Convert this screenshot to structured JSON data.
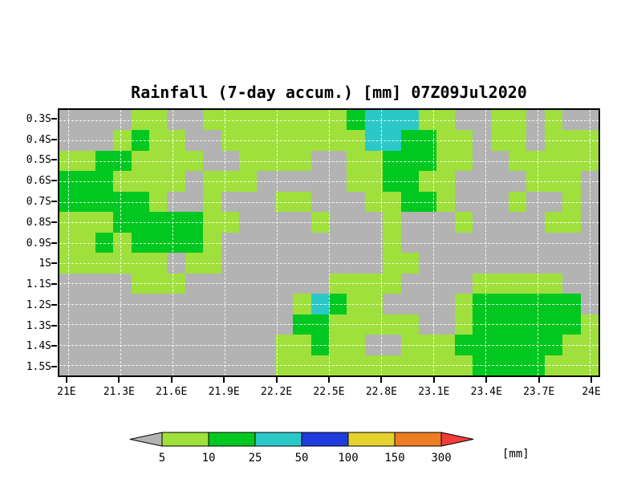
{
  "title": "Rainfall (7-day accum.) [mm] 07Z09Jul2020",
  "chart_data": {
    "type": "heatmap",
    "title": "Rainfall (7-day accum.) [mm] 07Z09Jul2020",
    "xlabel": "",
    "ylabel": "",
    "lon_range": [
      20.95,
      24.05
    ],
    "lat_range": [
      0.25,
      1.55
    ],
    "grid_on": true,
    "x_ticks": [
      {
        "value": 21,
        "label": "21E"
      },
      {
        "value": 21.3,
        "label": "21.3E"
      },
      {
        "value": 21.6,
        "label": "21.6E"
      },
      {
        "value": 21.9,
        "label": "21.9E"
      },
      {
        "value": 22.2,
        "label": "22.2E"
      },
      {
        "value": 22.5,
        "label": "22.5E"
      },
      {
        "value": 22.8,
        "label": "22.8E"
      },
      {
        "value": 23.1,
        "label": "23.1E"
      },
      {
        "value": 23.4,
        "label": "23.4E"
      },
      {
        "value": 23.7,
        "label": "23.7E"
      },
      {
        "value": 24,
        "label": "24E"
      }
    ],
    "y_ticks": [
      {
        "value": 0.3,
        "label": "0.3S"
      },
      {
        "value": 0.4,
        "label": "0.4S"
      },
      {
        "value": 0.5,
        "label": "0.5S"
      },
      {
        "value": 0.6,
        "label": "0.6S"
      },
      {
        "value": 0.7,
        "label": "0.7S"
      },
      {
        "value": 0.8,
        "label": "0.8S"
      },
      {
        "value": 0.9,
        "label": "0.9S"
      },
      {
        "value": 1.0,
        "label": "1S"
      },
      {
        "value": 1.1,
        "label": "1.1S"
      },
      {
        "value": 1.2,
        "label": "1.2S"
      },
      {
        "value": 1.3,
        "label": "1.3S"
      },
      {
        "value": 1.4,
        "label": "1.4S"
      },
      {
        "value": 1.5,
        "label": "1.5S"
      }
    ],
    "code_colors": {
      "G": "#b3b3b3",
      "L": "#a0e03c",
      "D": "#00c820",
      "C": "#2cc8c8"
    },
    "code_meaning": {
      "G": "below 5 mm",
      "L": "5-10 mm",
      "D": "10-25 mm",
      "C": "25-50 mm"
    },
    "grid_codes": [
      "GGGGLLGGLLLLLLLLDCCCLLGGLLGLGG",
      "GGGLDLLGGLLLLLLLLCCDDLLGLLGLLL",
      "LLDDLLLLGGLLLLGGLLDDDLLGGLLLLL",
      "DDDLLLLGLLLGGGGGLLDDLLGGGGLLLG",
      "DDDDDLGGLGGGLLGGGLLDDLGGGLGGLG",
      "LLLDDDDDLLGGGGLGGGLGGGLGGGGLLG",
      "LLDLDDDDLGGGGGGGGGLGGGGGGGGGGG",
      "LLLLLLGLLGGGGGGGGGLLGGGGGGGGGG",
      "GGGGLLLGGGGGGGGLLLLGGGGLLLLLGG",
      "GGGGGGGGGGGGGLCDLLGGGGLDDDDDDG",
      "GGGGGGGGGGGGGDDLLLLLGGLDDDDDDL",
      "GGGGGGGGGGGGLLDLLGGLLLDDDDDDLL",
      "GGGGGGGGGGGGLLLLLLLLLLLDDDDLLL"
    ],
    "legend": {
      "values": [
        "5",
        "10",
        "25",
        "50",
        "100",
        "150",
        "300"
      ],
      "colors": [
        "#b3b3b3",
        "#a0e03c",
        "#00c820",
        "#2cc8c8",
        "#1e3cdc",
        "#e6d22e",
        "#ec7d23",
        "#f03c3c"
      ],
      "unit": "[mm]",
      "position": "bottom"
    }
  }
}
